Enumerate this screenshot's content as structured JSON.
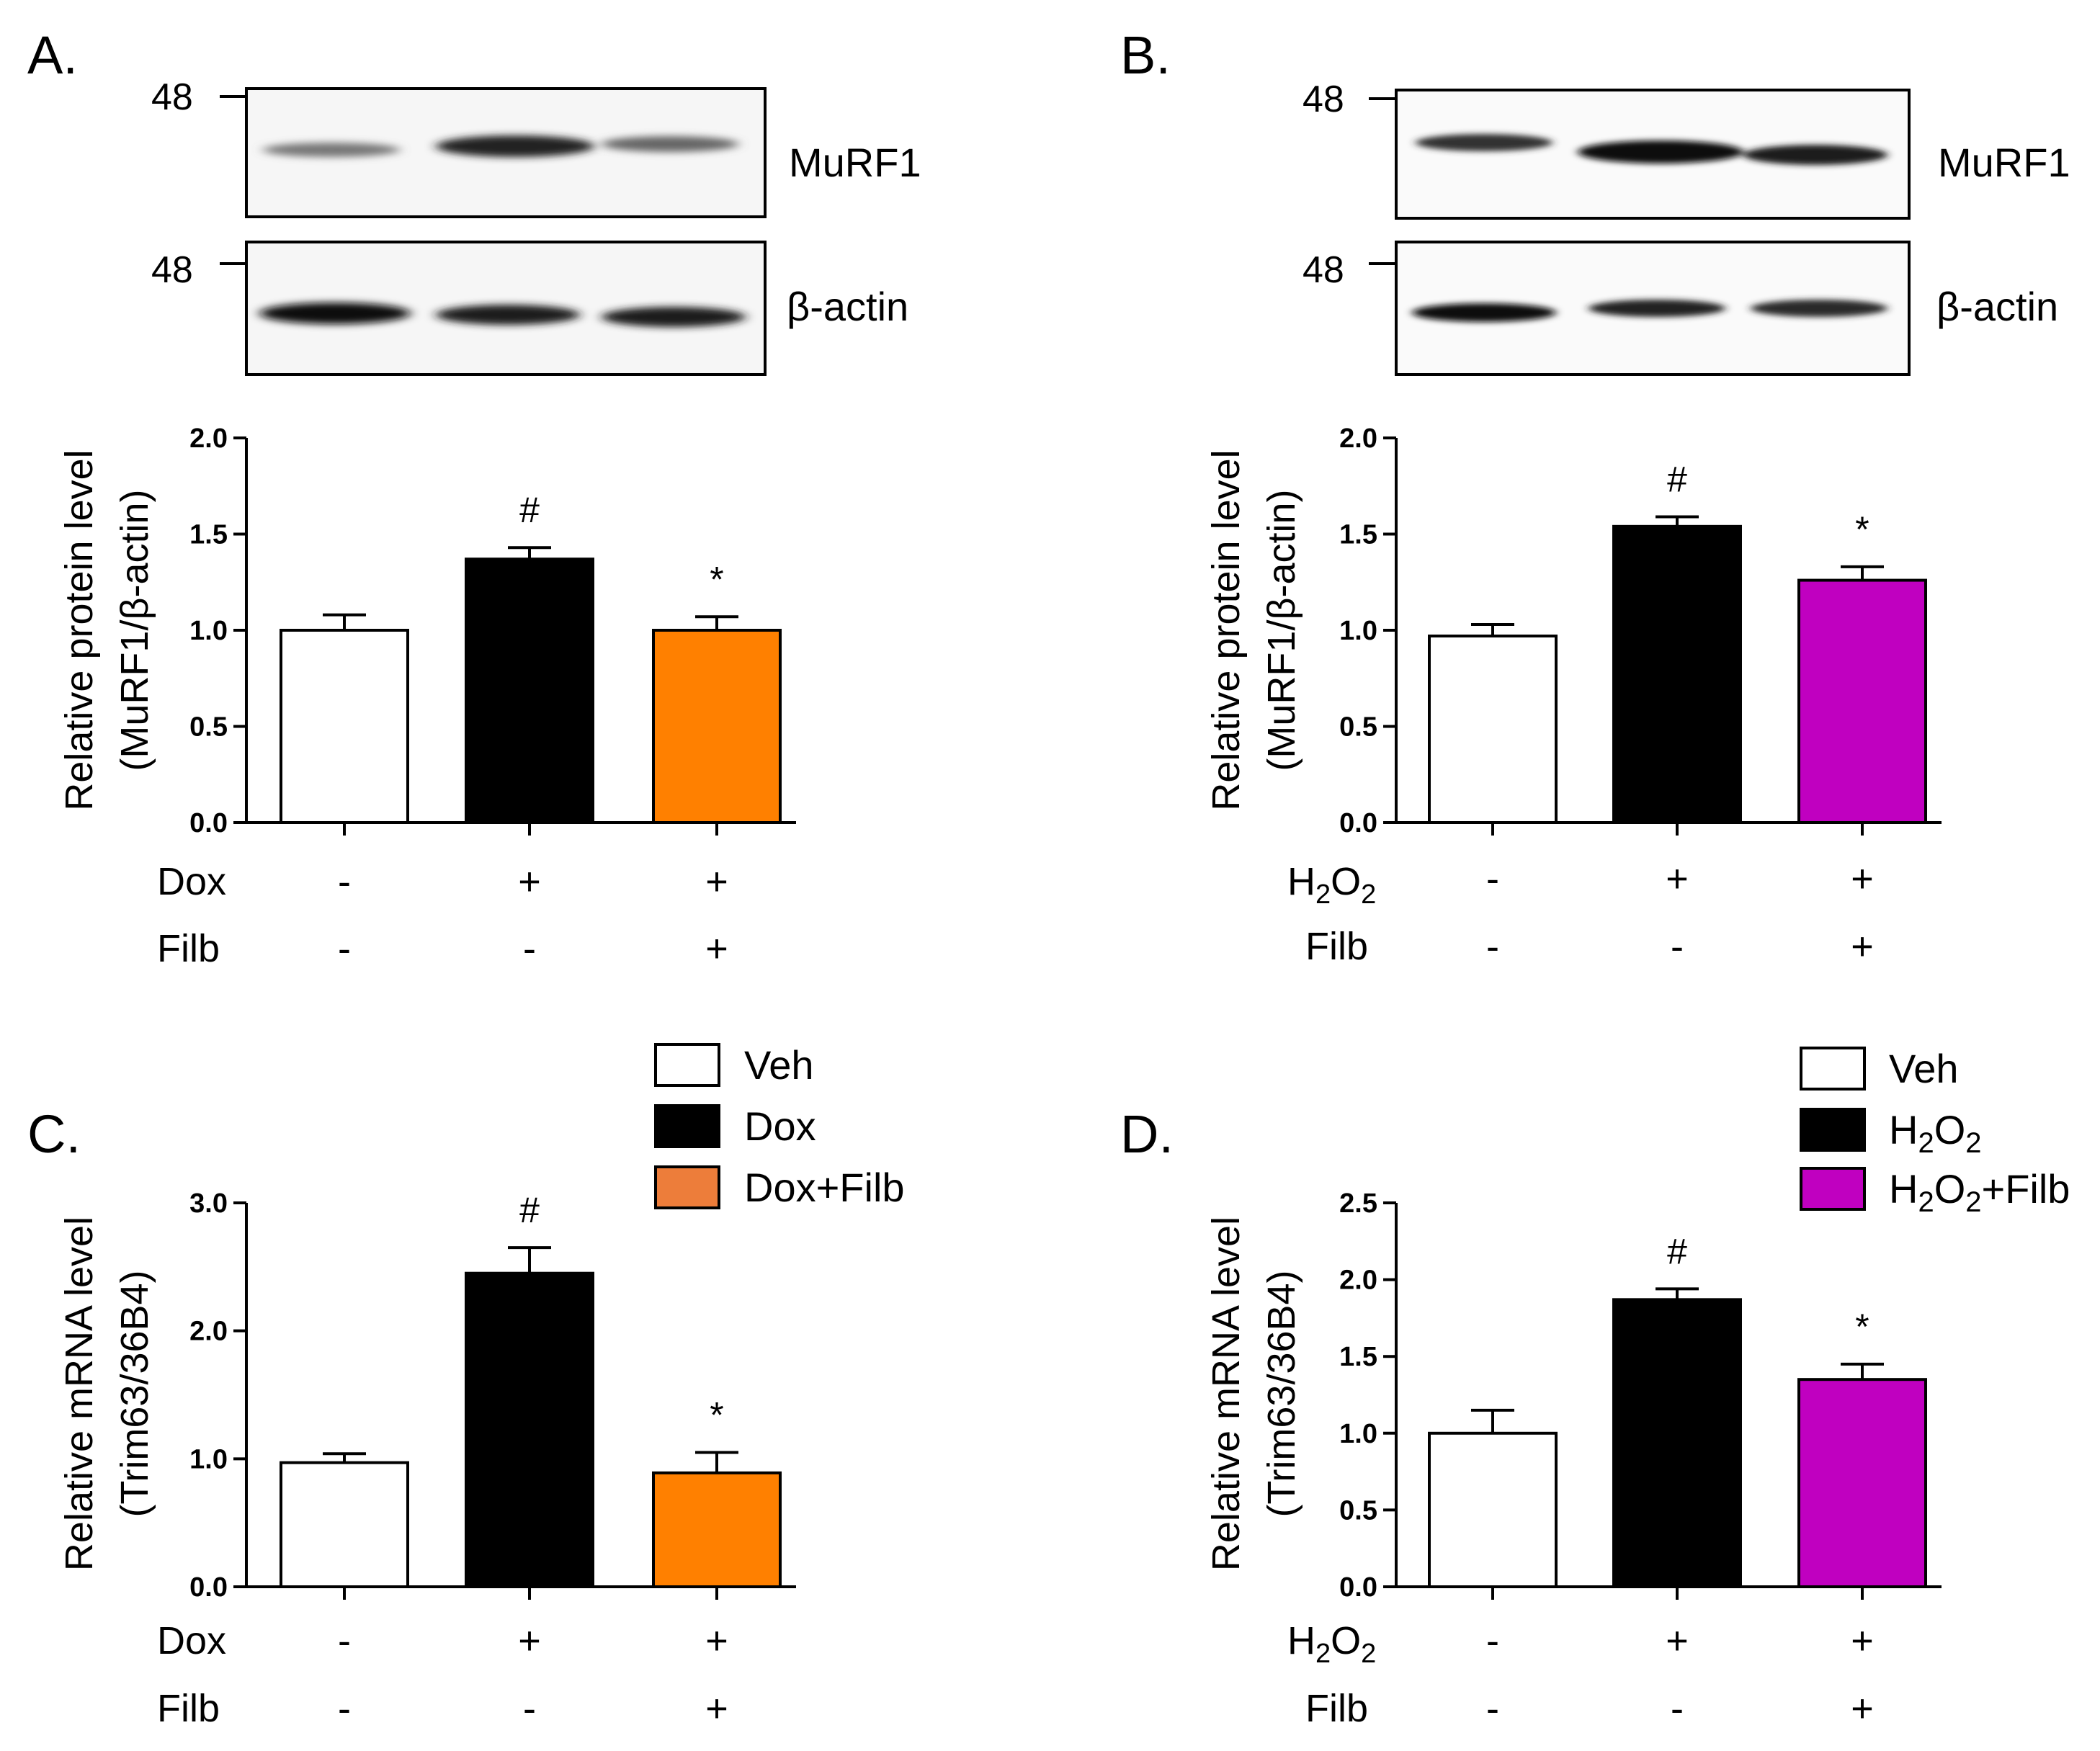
{
  "colors": {
    "veh": "#ffffff",
    "treatment": "#000000",
    "dox_filb": "#ff8000",
    "dox_filb_legend": "#ed7d3a",
    "h2o2_filb": "#c000c0"
  },
  "panels": {
    "A": {
      "letter": "A.",
      "blots": [
        {
          "marker": "48",
          "label": "MuRF1"
        },
        {
          "marker": "48",
          "label": "β-actin"
        }
      ],
      "conditions": [
        {
          "name": "Dox",
          "signs": [
            "-",
            "+",
            "+"
          ]
        },
        {
          "name": "Filb",
          "signs": [
            "-",
            "-",
            "+"
          ]
        }
      ]
    },
    "B": {
      "letter": "B.",
      "blots": [
        {
          "marker": "48",
          "label": "MuRF1"
        },
        {
          "marker": "48",
          "label": "β-actin"
        }
      ],
      "conditions": [
        {
          "name": "H2O2",
          "signs": [
            "-",
            "+",
            "+"
          ]
        },
        {
          "name": "Filb",
          "signs": [
            "-",
            "-",
            "+"
          ]
        }
      ]
    },
    "C": {
      "letter": "C.",
      "legend": [
        "Veh",
        "Dox",
        "Dox+Filb"
      ],
      "conditions": [
        {
          "name": "Dox",
          "signs": [
            "-",
            "+",
            "+"
          ]
        },
        {
          "name": "Filb",
          "signs": [
            "-",
            "-",
            "+"
          ]
        }
      ]
    },
    "D": {
      "letter": "D.",
      "legend": [
        "Veh",
        "H2O2",
        "H2O2+Filb"
      ],
      "conditions": [
        {
          "name": "H2O2",
          "signs": [
            "-",
            "+",
            "+"
          ]
        },
        {
          "name": "Filb",
          "signs": [
            "-",
            "-",
            "+"
          ]
        }
      ]
    }
  },
  "chart_data": [
    {
      "panel": "A",
      "type": "bar",
      "ylabel": [
        "Relative protein level",
        "(MuRF1/β-actin)"
      ],
      "ylim": [
        0,
        2.0
      ],
      "yticks": [
        "0.0",
        "0.5",
        "1.0",
        "1.5",
        "2.0"
      ],
      "values": [
        1.0,
        1.37,
        1.0
      ],
      "errors": [
        0.08,
        0.06,
        0.07
      ],
      "significance": [
        "",
        "#",
        "*"
      ]
    },
    {
      "panel": "B",
      "type": "bar",
      "ylabel": [
        "Relative protein level",
        "(MuRF1/β-actin)"
      ],
      "ylim": [
        0,
        2.0
      ],
      "yticks": [
        "0.0",
        "0.5",
        "1.0",
        "1.5",
        "2.0"
      ],
      "values": [
        0.97,
        1.54,
        1.26
      ],
      "errors": [
        0.06,
        0.05,
        0.07
      ],
      "significance": [
        "",
        "#",
        "*"
      ]
    },
    {
      "panel": "C",
      "type": "bar",
      "ylabel": [
        "Relative mRNA level",
        "(Trim63/36B4)"
      ],
      "ylim": [
        0,
        3.0
      ],
      "yticks": [
        "0.0",
        "1.0",
        "2.0",
        "3.0"
      ],
      "values": [
        0.97,
        2.45,
        0.89
      ],
      "errors": [
        0.07,
        0.2,
        0.16
      ],
      "significance": [
        "",
        "#",
        "*"
      ]
    },
    {
      "panel": "D",
      "type": "bar",
      "ylabel": [
        "Relative mRNA level",
        "(Trim63/36B4)"
      ],
      "ylim": [
        0,
        2.5
      ],
      "yticks": [
        "0.0",
        "0.5",
        "1.0",
        "1.5",
        "2.0",
        "2.5"
      ],
      "values": [
        1.0,
        1.87,
        1.35
      ],
      "errors": [
        0.15,
        0.07,
        0.1
      ],
      "significance": [
        "",
        "#",
        "*"
      ]
    }
  ]
}
